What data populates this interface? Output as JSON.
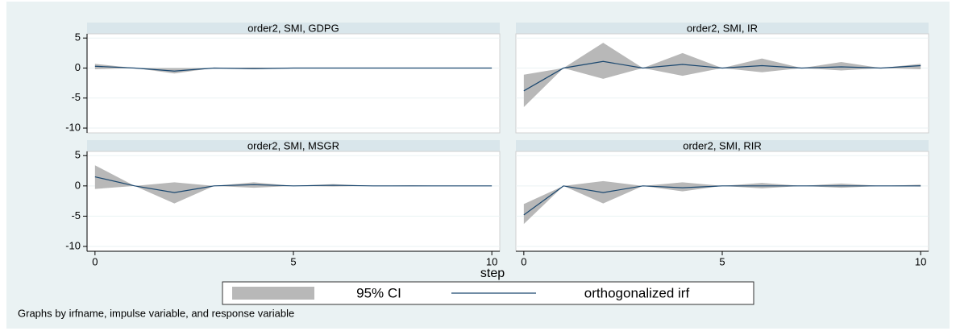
{
  "chart_data": {
    "type": "irf-band",
    "x": [
      0,
      1,
      2,
      3,
      4,
      5,
      6,
      7,
      8,
      9,
      10
    ],
    "xlim": [
      -0.2,
      10.2
    ],
    "ylim": [
      -10.8,
      5.7
    ],
    "xticks": [
      0,
      5,
      10
    ],
    "yticks": [
      5,
      0,
      -5,
      -10
    ],
    "grid": true,
    "x_label": "step",
    "band_name": "95% CI",
    "band_color": "#b8b8b8",
    "line_name": "orthogonalized irf",
    "line_color": "#1a476f",
    "note": "Graphs by irfname, impulse variable, and response variable",
    "panels": [
      {
        "title": "order2, SMI, GDPG",
        "lower": [
          -0.2,
          0,
          -0.9,
          0,
          -0.2,
          0,
          0,
          0,
          0,
          0,
          0
        ],
        "upper": [
          0.7,
          0,
          0.0,
          0,
          0.1,
          0,
          0,
          0,
          0,
          0,
          0
        ],
        "irf": [
          0.3,
          0,
          -0.5,
          0,
          -0.1,
          0,
          0,
          0,
          0,
          0,
          0
        ]
      },
      {
        "title": "order2, SMI, IR",
        "lower": [
          -6.5,
          0,
          -1.8,
          0,
          -1.3,
          0,
          -0.7,
          0,
          -0.4,
          0,
          -0.2
        ],
        "upper": [
          -1.1,
          0,
          4.2,
          0,
          2.5,
          0,
          1.6,
          0,
          1.0,
          0,
          0.7
        ],
        "irf": [
          -3.8,
          0,
          1.1,
          0,
          0.6,
          0,
          0.4,
          0,
          0.2,
          0,
          0.4
        ]
      },
      {
        "title": "order2, SMI, MSGR",
        "lower": [
          -0.5,
          0,
          -2.9,
          0,
          -0.3,
          0,
          -0.1,
          0,
          0,
          0,
          0
        ],
        "upper": [
          3.4,
          0,
          0.6,
          0,
          0.6,
          0,
          0.3,
          0,
          0.1,
          0,
          0
        ],
        "irf": [
          1.5,
          0,
          -1.1,
          0,
          0.2,
          0,
          0.1,
          0,
          0,
          0,
          0
        ]
      },
      {
        "title": "order2, SMI, RIR",
        "lower": [
          -6.3,
          0,
          -2.9,
          0,
          -0.9,
          0,
          -0.4,
          0,
          -0.3,
          0,
          -0.1
        ],
        "upper": [
          -3.0,
          0,
          0.8,
          0,
          0.6,
          0,
          0.5,
          0,
          0.4,
          0,
          0.2
        ],
        "irf": [
          -4.8,
          0,
          -1.1,
          0,
          -0.3,
          0,
          0,
          0,
          0,
          0,
          0
        ]
      }
    ]
  }
}
